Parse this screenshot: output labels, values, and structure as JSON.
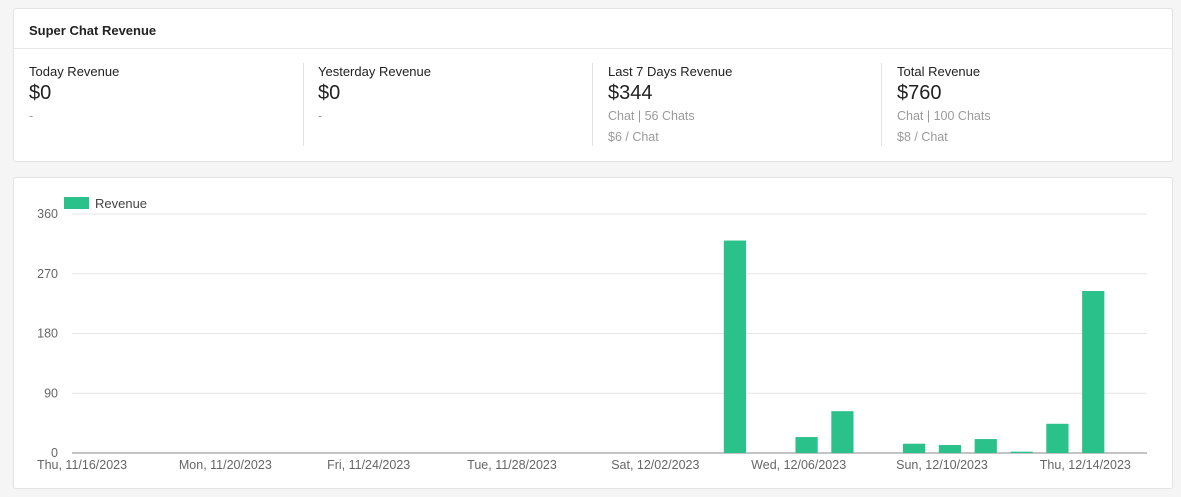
{
  "summary": {
    "title": "Super Chat Revenue",
    "stats": [
      {
        "label": "Today Revenue",
        "value": "$0",
        "sub1": "-",
        "sub2": ""
      },
      {
        "label": "Yesterday Revenue",
        "value": "$0",
        "sub1": "-",
        "sub2": ""
      },
      {
        "label": "Last 7 Days Revenue",
        "value": "$344",
        "sub1": "Chat | 56 Chats",
        "sub2": "$6 / Chat"
      },
      {
        "label": "Total Revenue",
        "value": "$760",
        "sub1": "Chat | 100 Chats",
        "sub2": "$8 / Chat"
      }
    ]
  },
  "chart_data": {
    "type": "bar",
    "title": "",
    "xlabel": "",
    "ylabel": "",
    "ylim": [
      0,
      360
    ],
    "y_ticks": [
      0,
      90,
      180,
      270,
      360
    ],
    "x_tick_labels": [
      "Thu, 11/16/2023",
      "Mon, 11/20/2023",
      "Fri, 11/24/2023",
      "Tue, 11/28/2023",
      "Sat, 12/02/2023",
      "Wed, 12/06/2023",
      "Sun, 12/10/2023",
      "Thu, 12/14/2023"
    ],
    "legend": {
      "position": "top-left",
      "entries": [
        "Revenue"
      ]
    },
    "grid": true,
    "color": "#2ac18b",
    "series": [
      {
        "name": "Revenue",
        "x": [
          "11/16/2023",
          "11/17/2023",
          "11/18/2023",
          "11/19/2023",
          "11/20/2023",
          "11/21/2023",
          "11/22/2023",
          "11/23/2023",
          "11/24/2023",
          "11/25/2023",
          "11/26/2023",
          "11/27/2023",
          "11/28/2023",
          "11/29/2023",
          "11/30/2023",
          "12/01/2023",
          "12/02/2023",
          "12/03/2023",
          "12/04/2023",
          "12/05/2023",
          "12/06/2023",
          "12/07/2023",
          "12/08/2023",
          "12/09/2023",
          "12/10/2023",
          "12/11/2023",
          "12/12/2023",
          "12/13/2023",
          "12/14/2023",
          "12/15/2023"
        ],
        "values": [
          0,
          0,
          0,
          0,
          0,
          0,
          0,
          0,
          0,
          0,
          0,
          0,
          0,
          0,
          0,
          0,
          0,
          0,
          320,
          0,
          24,
          63,
          0,
          14,
          12,
          21,
          2,
          44,
          244,
          0
        ]
      }
    ]
  }
}
